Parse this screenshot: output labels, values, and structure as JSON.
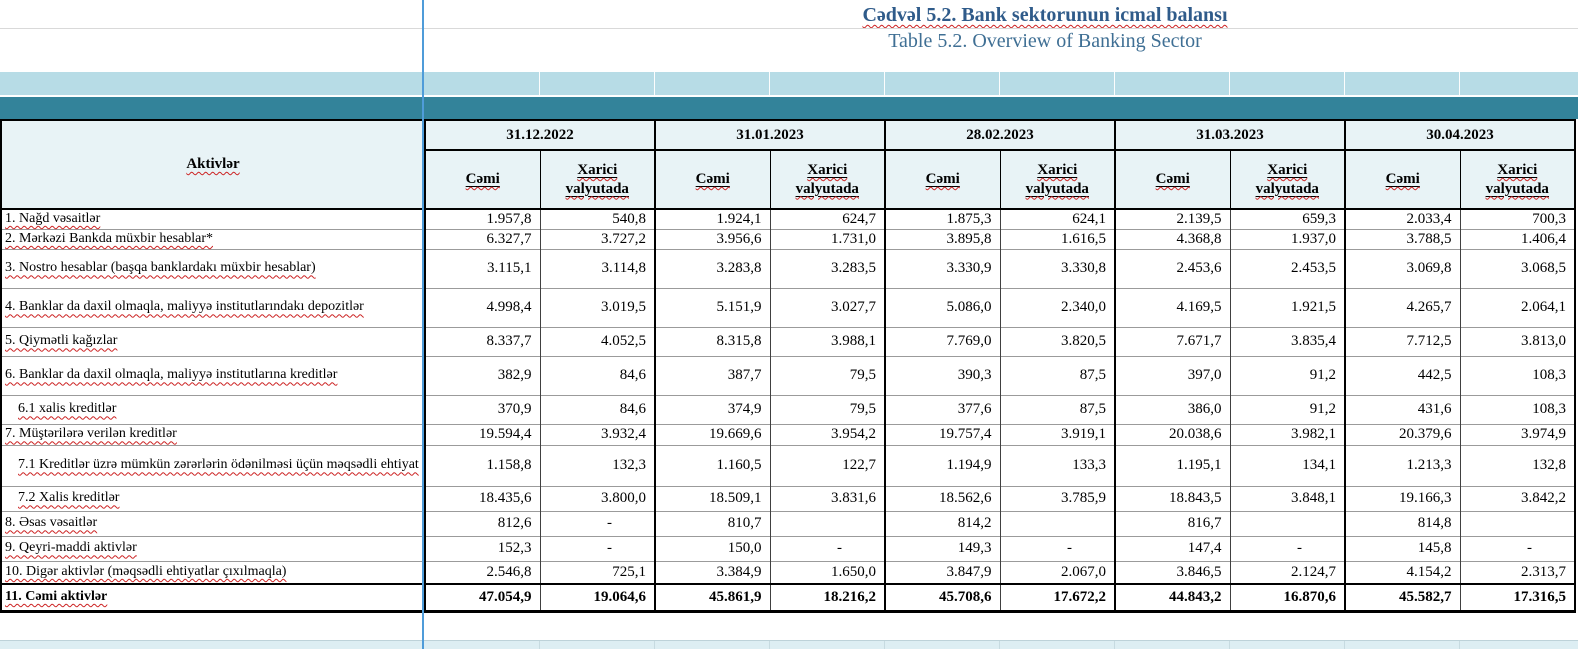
{
  "title": {
    "az": "Cədvəl 5.2. Bank sektorunun icmal balansı",
    "en": "Table 5.2. Overview of Banking Sector"
  },
  "colors": {
    "teal_band": "#33839a",
    "light_blue_band": "#b7dce6",
    "header_cell_bg": "#e8f3f6",
    "title_blue": "#2f5b8a",
    "subtitle_blue": "#3f6f94",
    "freeze_line_blue": "#4f9cd9",
    "spellcheck_red": "#cc2222"
  },
  "table": {
    "corner_header": "Aktivlər",
    "date_headers": [
      "31.12.2022",
      "31.01.2023",
      "28.02.2023",
      "31.03.2023",
      "30.04.2023"
    ],
    "sub_headers": {
      "total": "Cəmi",
      "foreign": "Xarici valyutada"
    },
    "rows": [
      {
        "label": "1. Nağd vəsaitlər",
        "values": [
          "1.957,8",
          "540,8",
          "1.924,1",
          "624,7",
          "1.875,3",
          "624,1",
          "2.139,5",
          "659,3",
          "2.033,4",
          "700,3"
        ]
      },
      {
        "label": "2. Mərkəzi Bankda müxbir hesablar*",
        "values": [
          "6.327,7",
          "3.727,2",
          "3.956,6",
          "1.731,0",
          "3.895,8",
          "1.616,5",
          "4.368,8",
          "1.937,0",
          "3.788,5",
          "1.406,4"
        ]
      },
      {
        "label": "3. Nostro hesablar (başqa banklardakı müxbir hesablar)",
        "values": [
          "3.115,1",
          "3.114,8",
          "3.283,8",
          "3.283,5",
          "3.330,9",
          "3.330,8",
          "2.453,6",
          "2.453,5",
          "3.069,8",
          "3.068,5"
        ]
      },
      {
        "label": "4. Banklar da daxil olmaqla, maliyyə institutlarındakı depozitlər",
        "values": [
          "4.998,4",
          "3.019,5",
          "5.151,9",
          "3.027,7",
          "5.086,0",
          "2.340,0",
          "4.169,5",
          "1.921,5",
          "4.265,7",
          "2.064,1"
        ]
      },
      {
        "label": "5. Qiymətli kağızlar",
        "values": [
          "8.337,7",
          "4.052,5",
          "8.315,8",
          "3.988,1",
          "7.769,0",
          "3.820,5",
          "7.671,7",
          "3.835,4",
          "7.712,5",
          "3.813,0"
        ]
      },
      {
        "label": "6. Banklar da daxil olmaqla, maliyyə institutlarına kreditlər",
        "values": [
          "382,9",
          "84,6",
          "387,7",
          "79,5",
          "390,3",
          "87,5",
          "397,0",
          "91,2",
          "442,5",
          "108,3"
        ]
      },
      {
        "label": "6.1 xalis kreditlər",
        "sub": true,
        "values": [
          "370,9",
          "84,6",
          "374,9",
          "79,5",
          "377,6",
          "87,5",
          "386,0",
          "91,2",
          "431,6",
          "108,3"
        ]
      },
      {
        "label": "7. Müştərilərə verilən kreditlər",
        "values": [
          "19.594,4",
          "3.932,4",
          "19.669,6",
          "3.954,2",
          "19.757,4",
          "3.919,1",
          "20.038,6",
          "3.982,1",
          "20.379,6",
          "3.974,9"
        ]
      },
      {
        "label": "7.1 Kreditlər üzrə mümkün zərərlərin ödənilməsi üçün məqsədli ehtiyat",
        "sub": true,
        "values": [
          "1.158,8",
          "132,3",
          "1.160,5",
          "122,7",
          "1.194,9",
          "133,3",
          "1.195,1",
          "134,1",
          "1.213,3",
          "132,8"
        ]
      },
      {
        "label": "7.2 Xalis kreditlər",
        "sub": true,
        "values": [
          "18.435,6",
          "3.800,0",
          "18.509,1",
          "3.831,6",
          "18.562,6",
          "3.785,9",
          "18.843,5",
          "3.848,1",
          "19.166,3",
          "3.842,2"
        ]
      },
      {
        "label": "8.  Əsas vəsaitlər",
        "values": [
          "812,6",
          "-",
          "810,7",
          "",
          "814,2",
          "",
          "816,7",
          "",
          "814,8",
          ""
        ]
      },
      {
        "label": "9. Qeyri-maddi aktivlər",
        "values": [
          "152,3",
          "-",
          "150,0",
          "-",
          "149,3",
          "-",
          "147,4",
          "-",
          "145,8",
          "-"
        ]
      },
      {
        "label": "10. Digər aktivlər (məqsədli ehtiyatlar çıxılmaqla)",
        "values": [
          "2.546,8",
          "725,1",
          "3.384,9",
          "1.650,0",
          "3.847,9",
          "2.067,0",
          "3.846,5",
          "2.124,7",
          "4.154,2",
          "2.313,7"
        ]
      },
      {
        "label": "11. Cəmi aktivlər",
        "bold": true,
        "values": [
          "47.054,9",
          "19.064,6",
          "45.861,9",
          "18.216,2",
          "45.708,6",
          "17.672,2",
          "44.843,2",
          "16.870,6",
          "45.582,7",
          "17.316,5"
        ]
      }
    ]
  }
}
